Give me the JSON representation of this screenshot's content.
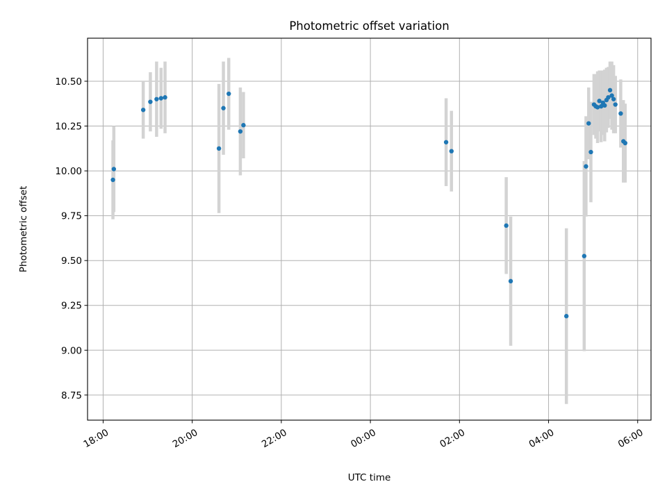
{
  "chart_data": {
    "type": "scatter",
    "title": "Photometric offset variation",
    "xlabel": "UTC time",
    "ylabel": "Photometric offset",
    "x_unit": "hours since 18:00 UTC",
    "xlim": [
      -0.35,
      12.3
    ],
    "ylim": [
      8.61,
      10.74
    ],
    "grid": true,
    "x_ticks": [
      {
        "value": 0,
        "label": "18:00"
      },
      {
        "value": 2,
        "label": "20:00"
      },
      {
        "value": 4,
        "label": "22:00"
      },
      {
        "value": 6,
        "label": "00:00"
      },
      {
        "value": 8,
        "label": "02:00"
      },
      {
        "value": 10,
        "label": "04:00"
      },
      {
        "value": 12,
        "label": "06:00"
      }
    ],
    "y_ticks": [
      {
        "value": 8.75,
        "label": "8.75"
      },
      {
        "value": 9.0,
        "label": "9.00"
      },
      {
        "value": 9.25,
        "label": "9.25"
      },
      {
        "value": 9.5,
        "label": "9.50"
      },
      {
        "value": 9.75,
        "label": "9.75"
      },
      {
        "value": 10.0,
        "label": "10.00"
      },
      {
        "value": 10.25,
        "label": "10.25"
      },
      {
        "value": 10.5,
        "label": "10.50"
      }
    ],
    "colors": {
      "point": "#1f77b4",
      "errorbar": "#d3d3d3",
      "grid": "#b0b0b0"
    },
    "points": [
      {
        "x": 0.22,
        "y": 9.95,
        "err": 0.22
      },
      {
        "x": 0.24,
        "y": 10.01,
        "err": 0.24
      },
      {
        "x": 0.9,
        "y": 10.34,
        "err": 0.16
      },
      {
        "x": 1.06,
        "y": 10.385,
        "err": 0.165
      },
      {
        "x": 1.2,
        "y": 10.4,
        "err": 0.21
      },
      {
        "x": 1.3,
        "y": 10.405,
        "err": 0.17
      },
      {
        "x": 1.39,
        "y": 10.41,
        "err": 0.2
      },
      {
        "x": 2.6,
        "y": 10.125,
        "err": 0.36
      },
      {
        "x": 2.7,
        "y": 10.35,
        "err": 0.26
      },
      {
        "x": 2.82,
        "y": 10.43,
        "err": 0.2
      },
      {
        "x": 3.08,
        "y": 10.22,
        "err": 0.245
      },
      {
        "x": 3.15,
        "y": 10.255,
        "err": 0.185
      },
      {
        "x": 7.7,
        "y": 10.16,
        "err": 0.245
      },
      {
        "x": 7.82,
        "y": 10.11,
        "err": 0.225
      },
      {
        "x": 9.05,
        "y": 9.695,
        "err": 0.27
      },
      {
        "x": 9.15,
        "y": 9.385,
        "err": 0.36
      },
      {
        "x": 10.4,
        "y": 9.19,
        "err": 0.49
      },
      {
        "x": 10.8,
        "y": 9.525,
        "err": 0.53
      },
      {
        "x": 10.84,
        "y": 10.025,
        "err": 0.28
      },
      {
        "x": 10.9,
        "y": 10.265,
        "err": 0.2
      },
      {
        "x": 10.95,
        "y": 10.105,
        "err": 0.28
      },
      {
        "x": 11.02,
        "y": 10.37,
        "err": 0.17
      },
      {
        "x": 11.06,
        "y": 10.36,
        "err": 0.18
      },
      {
        "x": 11.1,
        "y": 10.355,
        "err": 0.2
      },
      {
        "x": 11.14,
        "y": 10.39,
        "err": 0.17
      },
      {
        "x": 11.18,
        "y": 10.36,
        "err": 0.2
      },
      {
        "x": 11.22,
        "y": 10.38,
        "err": 0.18
      },
      {
        "x": 11.26,
        "y": 10.365,
        "err": 0.2
      },
      {
        "x": 11.3,
        "y": 10.395,
        "err": 0.18
      },
      {
        "x": 11.34,
        "y": 10.41,
        "err": 0.17
      },
      {
        "x": 11.38,
        "y": 10.45,
        "err": 0.16
      },
      {
        "x": 11.42,
        "y": 10.42,
        "err": 0.19
      },
      {
        "x": 11.46,
        "y": 10.4,
        "err": 0.19
      },
      {
        "x": 11.5,
        "y": 10.37,
        "err": 0.16
      },
      {
        "x": 11.62,
        "y": 10.32,
        "err": 0.19
      },
      {
        "x": 11.68,
        "y": 10.165,
        "err": 0.23
      },
      {
        "x": 11.72,
        "y": 10.155,
        "err": 0.22
      }
    ]
  }
}
